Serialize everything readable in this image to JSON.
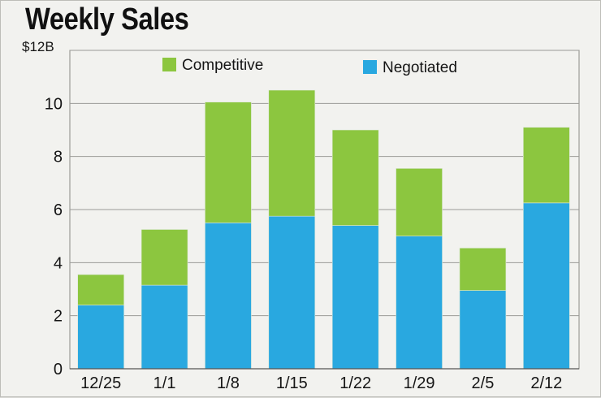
{
  "chart_data": {
    "type": "bar",
    "stacked": true,
    "title": "Weekly Sales",
    "xlabel": "",
    "ylabel": "",
    "categories": [
      "12/25",
      "1/1",
      "1/8",
      "1/15",
      "1/22",
      "1/29",
      "2/5",
      "2/12"
    ],
    "series": [
      {
        "name": "Negotiated",
        "color": "#29a8e0",
        "values": [
          2.4,
          3.15,
          5.5,
          5.75,
          5.4,
          5.0,
          2.95,
          6.25
        ]
      },
      {
        "name": "Competitive",
        "color": "#8cc63f",
        "values": [
          1.15,
          2.1,
          4.55,
          4.75,
          3.6,
          2.55,
          1.6,
          2.85
        ]
      }
    ],
    "legend_order": [
      "Competitive",
      "Negotiated"
    ],
    "legend_position": "top",
    "ylim": [
      0,
      12
    ],
    "yticks": [
      0,
      2,
      4,
      6,
      8,
      10,
      12
    ],
    "ytick_labels": [
      "0",
      "2",
      "4",
      "6",
      "8",
      "10",
      "$12B"
    ],
    "grid": true
  }
}
